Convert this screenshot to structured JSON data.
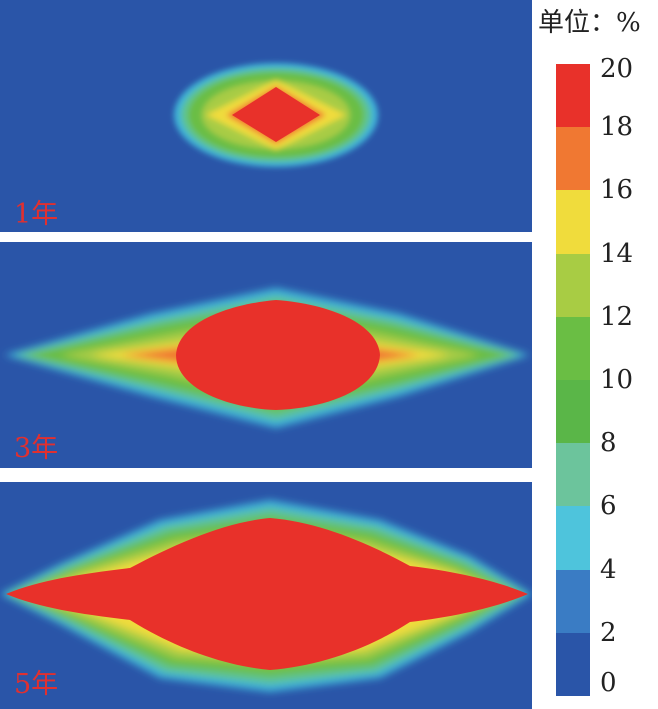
{
  "unit_label": "单位：%",
  "panels": [
    {
      "label": "1年"
    },
    {
      "label": "3年"
    },
    {
      "label": "5年"
    }
  ],
  "colorbar": {
    "ticks": [
      "20",
      "18",
      "16",
      "14",
      "12",
      "10",
      "8",
      "6",
      "4",
      "2",
      "0"
    ],
    "colors_top_to_bottom": [
      "#e8312a",
      "#f07832",
      "#f0dc3c",
      "#a8cc44",
      "#6abe44",
      "#5ab648",
      "#6cc49c",
      "#4ec4dc",
      "#3a7cc4",
      "#2a55a8"
    ]
  },
  "chart_data": {
    "type": "heatmap",
    "title": "",
    "unit": "%",
    "range": [
      0,
      20
    ],
    "levels": [
      0,
      2,
      4,
      6,
      8,
      10,
      12,
      14,
      16,
      18,
      20
    ],
    "panels": [
      "1年",
      "3年",
      "5年"
    ]
  }
}
